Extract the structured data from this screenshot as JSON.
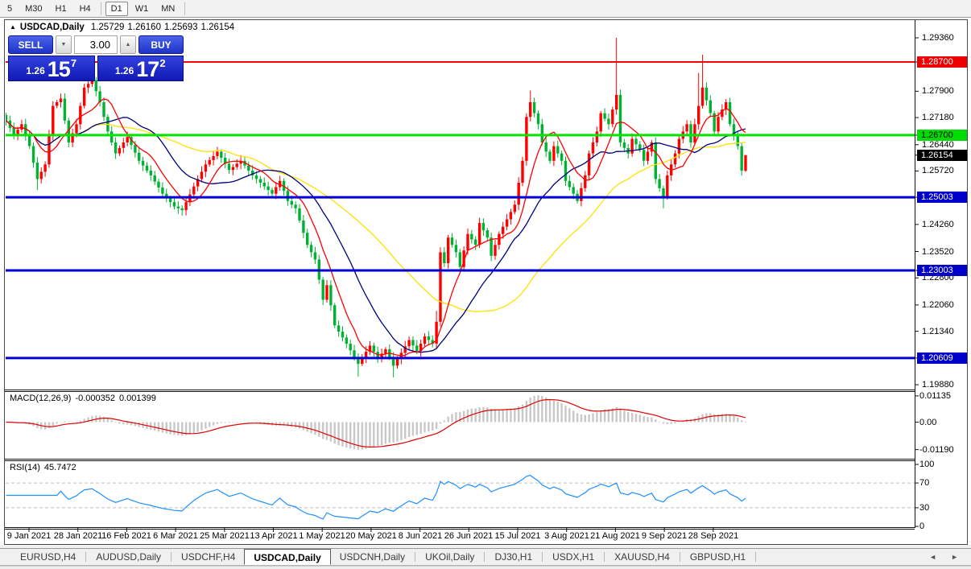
{
  "toolbar": {
    "timeframes": [
      "5",
      "M30",
      "H1",
      "H4",
      "D1",
      "W1",
      "MN"
    ],
    "active_timeframe": "D1"
  },
  "icons": {
    "title_marker": "▲",
    "spin_down": "▼",
    "spin_up": "▲",
    "tabs_left_arrow": "◄",
    "tabs_right_arrow": "►"
  },
  "window_title": {
    "symbol": "USDCAD,Daily",
    "open": "1.25729",
    "high": "1.26160",
    "low": "1.25693",
    "close": "1.26154"
  },
  "trade_panel": {
    "sell_label": "SELL",
    "buy_label": "BUY",
    "volume": "3.00",
    "sell_price_prefix": "1.26",
    "sell_price_big": "15",
    "sell_price_sup": "7",
    "buy_price_prefix": "1.26",
    "buy_price_big": "17",
    "buy_price_sup": "2"
  },
  "price_axis": {
    "plain_ticks": [
      1.2936,
      1.279,
      1.2718,
      1.2644,
      1.2572,
      1.2426,
      1.2352,
      1.228,
      1.2206,
      1.2134,
      1.1988
    ],
    "badges": [
      {
        "price": 1.287,
        "bg": "#ee0000",
        "fg": "#ffffff"
      },
      {
        "price": 1.267,
        "bg": "#00db00",
        "fg": "#000000"
      },
      {
        "price": 1.26154,
        "bg": "#000000",
        "fg": "#ffffff"
      },
      {
        "price": 1.25003,
        "bg": "#0000c8",
        "fg": "#ffffff"
      },
      {
        "price": 1.23003,
        "bg": "#0000c8",
        "fg": "#ffffff"
      },
      {
        "price": 1.20609,
        "bg": "#0000c8",
        "fg": "#ffffff"
      }
    ]
  },
  "indicators": {
    "macd": {
      "label": "MACD(12,26,9)",
      "value": "-0.000352",
      "signal_value": "0.001399",
      "axis_ticks": [
        {
          "v": 0.01135,
          "t": "0.01135"
        },
        {
          "v": 0.0,
          "t": "0.00"
        },
        {
          "v": -0.0119,
          "t": "-0.01190"
        }
      ]
    },
    "rsi": {
      "label": "RSI(14)",
      "value": "45.7472",
      "axis_ticks": [
        {
          "v": 100,
          "t": "100"
        },
        {
          "v": 70,
          "t": "70"
        },
        {
          "v": 30,
          "t": "30"
        },
        {
          "v": 0,
          "t": "0"
        }
      ],
      "dashed_levels": [
        70,
        30
      ]
    }
  },
  "time_axis": {
    "dates": [
      "9 Jan 2021",
      "28 Jan 2021",
      "16 Feb 2021",
      "6 Mar 2021",
      "25 Mar 2021",
      "13 Apr 2021",
      "1 May 2021",
      "20 May 2021",
      "8 Jun 2021",
      "26 Jun 2021",
      "15 Jul 2021",
      "3 Aug 2021",
      "21 Aug 2021",
      "9 Sep 2021",
      "28 Sep 2021"
    ]
  },
  "tabs": {
    "items": [
      "EURUSD,H4",
      "AUDUSD,Daily",
      "USDCHF,H4",
      "USDCAD,Daily",
      "USDCNH,Daily",
      "UKOil,Daily",
      "DJ30,H1",
      "USDX,H1",
      "XAUUSD,H4",
      "GBPUSD,H1"
    ],
    "active": "USDCAD,Daily"
  },
  "colors": {
    "candle_up": "#ff0000",
    "candle_down": "#00b232",
    "ma_fast": "#ff0000",
    "ma_medium": "#000080",
    "ma_slow": "#ffe100",
    "macd_histogram": "#c8c8c8",
    "macd_signal": "#e00000",
    "rsi_line": "#1e90ff",
    "level_red": "#ff0000",
    "level_green": "#00e400",
    "level_blue": "#0000d6"
  },
  "chart_data": {
    "type": "candlestick",
    "title": "USDCAD,Daily",
    "symbol": "USDCAD",
    "timeframe": "Daily",
    "ylim": [
      1.1977,
      1.2983
    ],
    "x_tick_labels": [
      "9 Jan 2021",
      "28 Jan 2021",
      "16 Feb 2021",
      "6 Mar 2021",
      "25 Mar 2021",
      "13 Apr 2021",
      "1 May 2021",
      "20 May 2021",
      "8 Jun 2021",
      "26 Jun 2021",
      "15 Jul 2021",
      "3 Aug 2021",
      "21 Aug 2021",
      "9 Sep 2021",
      "28 Sep 2021"
    ],
    "first_open": 1.2725,
    "closes": [
      1.271,
      1.269,
      1.267,
      1.2685,
      1.27,
      1.267,
      1.264,
      1.2595,
      1.255,
      1.257,
      1.259,
      1.267,
      1.275,
      1.276,
      1.277,
      1.271,
      1.265,
      1.2675,
      1.27,
      1.275,
      1.28,
      1.281,
      1.282,
      1.279,
      1.276,
      1.272,
      1.268,
      1.265,
      1.262,
      1.2635,
      1.265,
      1.2665,
      1.2643,
      1.2622,
      1.26,
      1.2587,
      1.2573,
      1.256,
      1.2543,
      1.2527,
      1.251,
      1.2498,
      1.2487,
      1.2475,
      1.247,
      1.2465,
      1.2487,
      1.2508,
      1.253,
      1.255,
      1.257,
      1.259,
      1.2602,
      1.2613,
      1.2625,
      1.2608,
      1.2592,
      1.2575,
      1.2583,
      1.2592,
      1.26,
      1.2587,
      1.2573,
      1.256,
      1.255,
      1.254,
      1.253,
      1.252,
      1.251,
      1.2528,
      1.2545,
      1.2518,
      1.249,
      1.248,
      1.247,
      1.2437,
      1.2403,
      1.237,
      1.235,
      1.233,
      1.2275,
      1.222,
      1.226,
      1.2205,
      1.215,
      1.2133,
      1.2117,
      1.21,
      1.2082,
      1.2063,
      1.2045,
      1.2062,
      1.2078,
      1.2095,
      1.2078,
      1.206,
      1.2073,
      1.2085,
      1.2063,
      1.204,
      1.2058,
      1.2075,
      1.2093,
      1.211,
      1.2095,
      1.208,
      1.21,
      1.212,
      1.211,
      1.21,
      1.216,
      1.235,
      1.232,
      1.239,
      1.237,
      1.235,
      1.231,
      1.2355,
      1.24,
      1.2385,
      1.237,
      1.243,
      1.241,
      1.239,
      1.234,
      1.237,
      1.24,
      1.242,
      1.244,
      1.246,
      1.248,
      1.254,
      1.26,
      1.272,
      1.276,
      1.273,
      1.27,
      1.265,
      1.2625,
      1.26,
      1.264,
      1.262,
      1.26,
      1.2545,
      1.2528,
      1.251,
      1.249,
      1.2525,
      1.256,
      1.262,
      1.265,
      1.268,
      1.273,
      1.2715,
      1.27,
      1.274,
      1.278,
      1.265,
      1.2635,
      1.262,
      1.266,
      1.2645,
      1.263,
      1.26,
      1.2625,
      1.265,
      1.255,
      1.2525,
      1.25,
      1.256,
      1.259,
      1.262,
      1.266,
      1.268,
      1.27,
      1.265,
      1.27,
      1.275,
      1.28,
      1.2765,
      1.273,
      1.268,
      1.272,
      1.274,
      1.276,
      1.27,
      1.267,
      1.264,
      1.2573,
      1.26154
    ],
    "wick_overrides": {
      "8": {
        "l": 1.252
      },
      "22": {
        "h": 1.2845
      },
      "45": {
        "l": 1.245
      },
      "90": {
        "l": 1.201
      },
      "99": {
        "l": 1.2008
      },
      "110": {
        "h": 1.219
      },
      "134": {
        "h": 1.2792
      },
      "156": {
        "h": 1.2936
      },
      "168": {
        "l": 1.247
      },
      "177": {
        "h": 1.284
      },
      "178": {
        "h": 1.289
      }
    },
    "last_candle": {
      "o": 1.25729,
      "h": 1.2616,
      "l": 1.25693,
      "c": 1.26154
    },
    "horizontal_levels": [
      {
        "price": 1.287,
        "color": "#ff0000",
        "width": 2
      },
      {
        "price": 1.267,
        "color": "#00e400",
        "width": 3
      },
      {
        "price": 1.25003,
        "color": "#0000d6",
        "width": 3
      },
      {
        "price": 1.23003,
        "color": "#0000d6",
        "width": 3
      },
      {
        "price": 1.20609,
        "color": "#0000d6",
        "width": 3
      }
    ],
    "moving_averages": [
      {
        "name": "slow",
        "period": 45,
        "color": "#ffe100"
      },
      {
        "name": "medium",
        "period": 20,
        "color": "#000080"
      },
      {
        "name": "fast",
        "period": 8,
        "color": "#ff0000"
      }
    ],
    "macd_params": {
      "fast": 12,
      "slow": 26,
      "signal": 9,
      "axis_max": 0.01135,
      "axis_min": -0.0119
    },
    "rsi_params": {
      "period": 14,
      "axis": [
        0,
        100
      ],
      "levels": [
        30,
        70
      ]
    }
  }
}
